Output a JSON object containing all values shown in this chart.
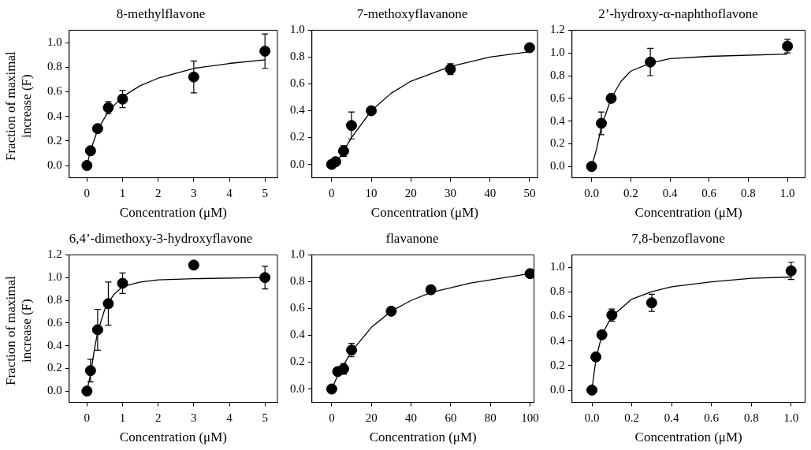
{
  "chart_data": [
    {
      "type": "scatter",
      "title": "8-methylflavone",
      "xlabel": "Concentration (μM)",
      "ylabel": "Fraction of maximal increase (F)",
      "xlim": [
        -0.5,
        5.35
      ],
      "ylim": [
        -0.1,
        1.1
      ],
      "xticks": [
        0,
        1,
        2,
        3,
        4,
        5
      ],
      "yticks": [
        {
          "value": 0,
          "label": "0.0"
        },
        {
          "value": 0.2,
          "label": "0.2"
        },
        {
          "value": 0.4,
          "label": "0.4"
        },
        {
          "value": 0.6,
          "label": "0.6"
        },
        {
          "value": 0.8,
          "label": "0.8"
        },
        {
          "value": 1,
          "label": "1.0"
        }
      ],
      "series": [
        {
          "color": "#000000",
          "marker": "circle",
          "x": [
            0,
            0.1,
            0.3,
            0.6,
            1,
            3,
            5
          ],
          "values": [
            0,
            0.12,
            0.3,
            0.47,
            0.54,
            0.72,
            0.93
          ],
          "errors": [
            null,
            null,
            null,
            0.05,
            0.07,
            0.13,
            0.14
          ]
        },
        {
          "type": "line",
          "marker": "none",
          "color": "#000000",
          "x": [
            0,
            0.1,
            0.3,
            0.6,
            1,
            1.5,
            2,
            3,
            4,
            5
          ],
          "values": [
            0,
            0.12,
            0.29,
            0.44,
            0.56,
            0.65,
            0.71,
            0.79,
            0.83,
            0.86
          ]
        }
      ]
    },
    {
      "type": "scatter",
      "title": "7-methoxyflavanone",
      "xlabel": "Concentration (μM)",
      "xlim": [
        -5,
        52
      ],
      "ylim": [
        -0.1,
        1.0
      ],
      "xticks": [
        0,
        10,
        20,
        30,
        40,
        50
      ],
      "yticks": [
        {
          "value": 0,
          "label": "0.0"
        },
        {
          "value": 0.2,
          "label": "0.2"
        },
        {
          "value": 0.4,
          "label": "0.4"
        },
        {
          "value": 0.6,
          "label": "0.6"
        },
        {
          "value": 0.8,
          "label": "0.8"
        },
        {
          "value": 1,
          "label": "1.0"
        }
      ],
      "series": [
        {
          "color": "#000000",
          "marker": "circle",
          "x": [
            0,
            1,
            3,
            5,
            10,
            30,
            50
          ],
          "values": [
            0,
            0.02,
            0.1,
            0.29,
            0.4,
            0.71,
            0.87
          ],
          "errors": [
            null,
            null,
            0.04,
            0.1,
            null,
            0.04,
            null
          ]
        },
        {
          "type": "line",
          "marker": "none",
          "color": "#000000",
          "x": [
            0,
            2,
            5,
            10,
            15,
            20,
            30,
            40,
            50
          ],
          "values": [
            0,
            0.05,
            0.2,
            0.4,
            0.53,
            0.62,
            0.73,
            0.8,
            0.84
          ]
        }
      ]
    },
    {
      "type": "scatter",
      "title": "2’-hydroxy-α-naphthoflavone",
      "xlabel": "Concentration (μM)",
      "xlim": [
        -0.1,
        1.09
      ],
      "ylim": [
        -0.1,
        1.2
      ],
      "xticks": [
        {
          "value": 0,
          "label": "0.0"
        },
        {
          "value": 0.2,
          "label": "0.2"
        },
        {
          "value": 0.4,
          "label": "0.4"
        },
        {
          "value": 0.6,
          "label": "0.6"
        },
        {
          "value": 0.8,
          "label": "0.8"
        },
        {
          "value": 1,
          "label": "1.0"
        }
      ],
      "yticks": [
        {
          "value": 0,
          "label": "0.0"
        },
        {
          "value": 0.2,
          "label": "0.2"
        },
        {
          "value": 0.4,
          "label": "0.4"
        },
        {
          "value": 0.6,
          "label": "0.6"
        },
        {
          "value": 0.8,
          "label": "0.8"
        },
        {
          "value": 1,
          "label": "1.0"
        },
        {
          "value": 1.2,
          "label": "1.2"
        }
      ],
      "series": [
        {
          "color": "#000000",
          "marker": "circle",
          "x": [
            0,
            0.05,
            0.1,
            0.3,
            1
          ],
          "values": [
            0,
            0.38,
            0.6,
            0.92,
            1.06
          ],
          "errors": [
            null,
            0.1,
            null,
            0.12,
            0.06
          ]
        },
        {
          "type": "line",
          "marker": "none",
          "color": "#000000",
          "x": [
            0,
            0.025,
            0.05,
            0.1,
            0.15,
            0.2,
            0.3,
            0.4,
            0.6,
            1
          ],
          "values": [
            0,
            0.15,
            0.35,
            0.6,
            0.75,
            0.84,
            0.91,
            0.95,
            0.97,
            0.99
          ]
        }
      ]
    },
    {
      "type": "scatter",
      "title": "6,4’-dimethoxy-3-hydroxyflavone",
      "xlabel": "Concentration (μM)",
      "ylabel": "Fraction of maximal increase (F)",
      "xlim": [
        -0.5,
        5.35
      ],
      "ylim": [
        -0.1,
        1.2
      ],
      "xticks": [
        0,
        1,
        2,
        3,
        4,
        5
      ],
      "yticks": [
        {
          "value": 0,
          "label": "0.0"
        },
        {
          "value": 0.2,
          "label": "0.2"
        },
        {
          "value": 0.4,
          "label": "0.4"
        },
        {
          "value": 0.6,
          "label": "0.6"
        },
        {
          "value": 0.8,
          "label": "0.8"
        },
        {
          "value": 1,
          "label": "1.0"
        },
        {
          "value": 1.2,
          "label": "1.2"
        }
      ],
      "series": [
        {
          "color": "#000000",
          "marker": "circle",
          "x": [
            0,
            0.1,
            0.3,
            0.6,
            1,
            3,
            5
          ],
          "values": [
            0,
            0.18,
            0.54,
            0.77,
            0.95,
            1.11,
            1.0
          ],
          "errors": [
            null,
            0.1,
            0.18,
            0.19,
            0.09,
            null,
            0.1
          ]
        },
        {
          "type": "line",
          "marker": "none",
          "color": "#000000",
          "x": [
            0,
            0.1,
            0.2,
            0.3,
            0.5,
            0.75,
            1,
            1.5,
            2,
            3,
            5
          ],
          "values": [
            0,
            0.15,
            0.35,
            0.52,
            0.72,
            0.85,
            0.92,
            0.96,
            0.98,
            0.99,
            1.0
          ]
        }
      ]
    },
    {
      "type": "scatter",
      "title": "flavanone",
      "xlabel": "Concentration (μM)",
      "xlim": [
        -10,
        102
      ],
      "ylim": [
        -0.1,
        1.0
      ],
      "xticks": [
        0,
        20,
        40,
        60,
        80,
        100
      ],
      "yticks": [
        {
          "value": 0,
          "label": "0.0"
        },
        {
          "value": 0.2,
          "label": "0.2"
        },
        {
          "value": 0.4,
          "label": "0.4"
        },
        {
          "value": 0.6,
          "label": "0.6"
        },
        {
          "value": 0.8,
          "label": "0.8"
        },
        {
          "value": 1,
          "label": "1.0"
        }
      ],
      "series": [
        {
          "color": "#000000",
          "marker": "circle",
          "x": [
            0,
            3,
            6,
            10,
            30,
            50,
            100
          ],
          "values": [
            0,
            0.13,
            0.15,
            0.29,
            0.58,
            0.74,
            0.86
          ],
          "errors": [
            null,
            null,
            0.04,
            0.05,
            null,
            0.03,
            0.03
          ]
        },
        {
          "type": "line",
          "marker": "none",
          "color": "#000000",
          "x": [
            0,
            3,
            6,
            10,
            20,
            30,
            40,
            50,
            70,
            100
          ],
          "values": [
            0,
            0.1,
            0.18,
            0.28,
            0.46,
            0.58,
            0.66,
            0.72,
            0.79,
            0.86
          ]
        }
      ]
    },
    {
      "type": "scatter",
      "title": "7,8-benzoflavone",
      "xlabel": "Concentration (μM)",
      "xlim": [
        -0.1,
        1.07
      ],
      "ylim": [
        -0.1,
        1.1
      ],
      "xticks": [
        {
          "value": 0,
          "label": "0.0"
        },
        {
          "value": 0.2,
          "label": "0.2"
        },
        {
          "value": 0.4,
          "label": "0.4"
        },
        {
          "value": 0.6,
          "label": "0.6"
        },
        {
          "value": 0.8,
          "label": "0.8"
        },
        {
          "value": 1,
          "label": "1.0"
        }
      ],
      "yticks": [
        {
          "value": 0,
          "label": "0.0"
        },
        {
          "value": 0.2,
          "label": "0.2"
        },
        {
          "value": 0.4,
          "label": "0.4"
        },
        {
          "value": 0.6,
          "label": "0.6"
        },
        {
          "value": 0.8,
          "label": "0.8"
        },
        {
          "value": 1,
          "label": "1.0"
        }
      ],
      "series": [
        {
          "color": "#000000",
          "marker": "circle",
          "x": [
            0,
            0.02,
            0.05,
            0.1,
            0.3,
            1
          ],
          "values": [
            0,
            0.27,
            0.45,
            0.61,
            0.71,
            0.97
          ],
          "errors": [
            null,
            null,
            null,
            0.05,
            0.07,
            0.07
          ]
        },
        {
          "type": "line",
          "marker": "none",
          "color": "#000000",
          "x": [
            0,
            0.02,
            0.05,
            0.1,
            0.2,
            0.3,
            0.4,
            0.6,
            0.8,
            1
          ],
          "values": [
            0,
            0.25,
            0.45,
            0.6,
            0.74,
            0.8,
            0.84,
            0.88,
            0.91,
            0.92
          ]
        }
      ]
    }
  ]
}
